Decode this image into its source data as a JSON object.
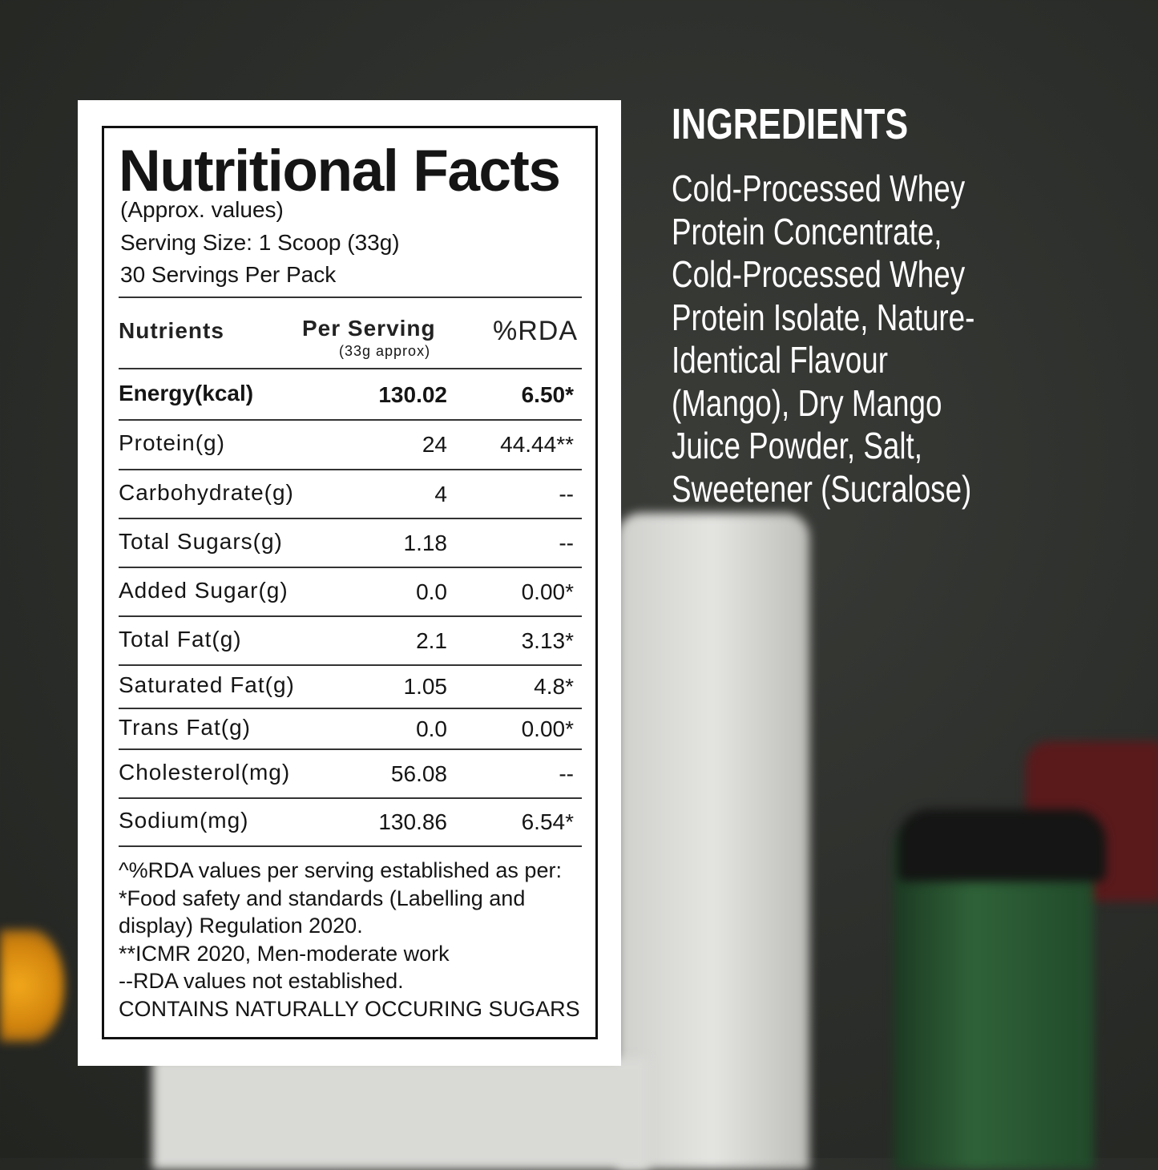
{
  "label": {
    "title": "Nutritional Facts",
    "approx": "(Approx. values)",
    "serving_size": "Serving Size: 1 Scoop   (33g)",
    "servings": "30 Servings Per Pack",
    "headers": {
      "nutrients": "Nutrients",
      "per_serving": "Per Serving",
      "per_serving_note": "(33g approx)",
      "rda": "%RDA"
    },
    "rows": [
      {
        "name": "Energy(kcal)",
        "value": "130.02",
        "rda": "6.50*",
        "bold": true
      },
      {
        "name": "Protein(g)",
        "value": "24",
        "rda": "44.44**"
      },
      {
        "name": "Carbohydrate(g)",
        "value": "4",
        "rda": "--"
      },
      {
        "name": "Total Sugars(g)",
        "value": "1.18",
        "rda": "--"
      },
      {
        "name": "Added Sugar(g)",
        "value": "0.0",
        "rda": "0.00*"
      },
      {
        "name": "Total Fat(g)",
        "value": "2.1",
        "rda": "3.13*"
      },
      {
        "name": "Saturated Fat(g)",
        "value": "1.05",
        "rda": "4.8*"
      },
      {
        "name": "Trans Fat(g)",
        "value": "0.0",
        "rda": "0.00*"
      },
      {
        "name": "Cholesterol(mg)",
        "value": "56.08",
        "rda": "--"
      },
      {
        "name": "Sodium(mg)",
        "value": "130.86",
        "rda": "6.54*"
      }
    ],
    "footnotes": [
      "^%RDA values per serving established as per:",
      "*Food safety and standards (Labelling and",
      "display) Regulation 2020.",
      "**ICMR 2020, Men-moderate work",
      "--RDA values not established.",
      "CONTAINS NATURALLY OCCURING SUGARS"
    ]
  },
  "ingredients": {
    "heading": "INGREDIENTS",
    "lines": [
      "Cold-Processed Whey",
      "Protein Concentrate,",
      "Cold-Processed Whey",
      "Protein Isolate, Nature-",
      "Identical Flavour",
      "(Mango), Dry Mango",
      "Juice Powder, Salt,",
      "Sweetener (Sucralose)"
    ]
  },
  "colors": {
    "background": "#2c2e2b",
    "card": "#ffffff",
    "text": "#151515"
  }
}
